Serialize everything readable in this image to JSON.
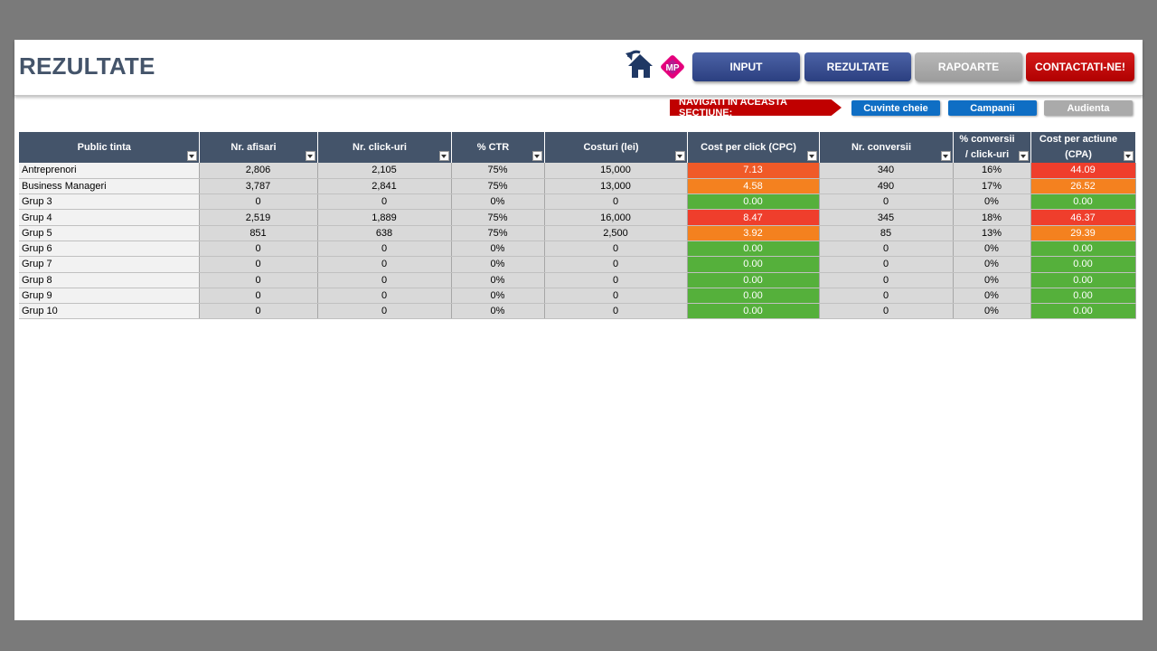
{
  "header": {
    "title": "REZULTATE",
    "logo_text": "MP",
    "nav": [
      {
        "label": "INPUT",
        "style": "blue"
      },
      {
        "label": "REZULTATE",
        "style": "blue"
      },
      {
        "label": "RAPOARTE",
        "style": "gray"
      },
      {
        "label": "CONTACTATI-NE!",
        "style": "red"
      }
    ]
  },
  "section_nav": {
    "label": "NAVIGATI IN ACEASTA SECTIUNE:",
    "buttons": [
      {
        "label": "Cuvinte cheie",
        "style": "blue"
      },
      {
        "label": "Campanii",
        "style": "blue"
      },
      {
        "label": "Audienta",
        "style": "gray"
      }
    ]
  },
  "colors": {
    "green": "#55b03b",
    "orange": "#f4811f",
    "orange_red": "#f05a28",
    "red": "#ef3e2c",
    "header_bg": "#44546a"
  },
  "table": {
    "headers": [
      "Public tinta",
      "Nr. afisari",
      "Nr. click-uri",
      "% CTR",
      "Costuri (lei)",
      "Cost per click (CPC)",
      "Nr. conversii",
      "% conversii / click-uri",
      "Cost per actiune (CPA)"
    ],
    "rows": [
      {
        "cells": [
          "Antreprenori",
          "2,806",
          "2,105",
          "75%",
          "15,000",
          "7.13",
          "340",
          "16%",
          "44.09"
        ],
        "cpc_color": "#f05a28",
        "cpa_color": "#ef3e2c"
      },
      {
        "cells": [
          "Business Manageri",
          "3,787",
          "2,841",
          "75%",
          "13,000",
          "4.58",
          "490",
          "17%",
          "26.52"
        ],
        "cpc_color": "#f4811f",
        "cpa_color": "#f4811f"
      },
      {
        "cells": [
          "Grup 3",
          "0",
          "0",
          "0%",
          "0",
          "0.00",
          "0",
          "0%",
          "0.00"
        ],
        "cpc_color": "#55b03b",
        "cpa_color": "#55b03b"
      },
      {
        "cells": [
          "Grup 4",
          "2,519",
          "1,889",
          "75%",
          "16,000",
          "8.47",
          "345",
          "18%",
          "46.37"
        ],
        "cpc_color": "#ef3e2c",
        "cpa_color": "#ef3e2c"
      },
      {
        "cells": [
          "Grup 5",
          "851",
          "638",
          "75%",
          "2,500",
          "3.92",
          "85",
          "13%",
          "29.39"
        ],
        "cpc_color": "#f4811f",
        "cpa_color": "#f4811f"
      },
      {
        "cells": [
          "Grup 6",
          "0",
          "0",
          "0%",
          "0",
          "0.00",
          "0",
          "0%",
          "0.00"
        ],
        "cpc_color": "#55b03b",
        "cpa_color": "#55b03b"
      },
      {
        "cells": [
          "Grup 7",
          "0",
          "0",
          "0%",
          "0",
          "0.00",
          "0",
          "0%",
          "0.00"
        ],
        "cpc_color": "#55b03b",
        "cpa_color": "#55b03b"
      },
      {
        "cells": [
          "Grup 8",
          "0",
          "0",
          "0%",
          "0",
          "0.00",
          "0",
          "0%",
          "0.00"
        ],
        "cpc_color": "#55b03b",
        "cpa_color": "#55b03b"
      },
      {
        "cells": [
          "Grup 9",
          "0",
          "0",
          "0%",
          "0",
          "0.00",
          "0",
          "0%",
          "0.00"
        ],
        "cpc_color": "#55b03b",
        "cpa_color": "#55b03b"
      },
      {
        "cells": [
          "Grup 10",
          "0",
          "0",
          "0%",
          "0",
          "0.00",
          "0",
          "0%",
          "0.00"
        ],
        "cpc_color": "#55b03b",
        "cpa_color": "#55b03b"
      }
    ]
  }
}
